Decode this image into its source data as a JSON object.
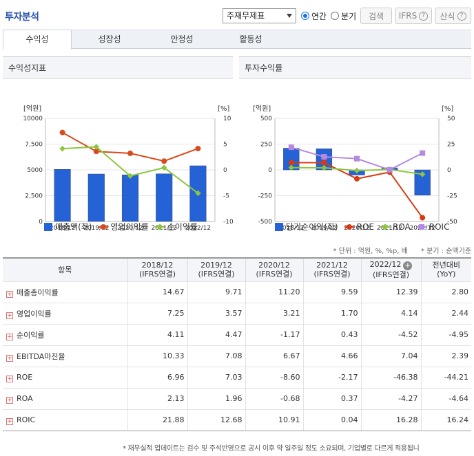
{
  "header": {
    "title": "투자분석",
    "select_value": "주재무제표",
    "radio_annual": "연간",
    "radio_quarter": "분기",
    "search_btn": "검색",
    "ifrs_btn": "IFRS",
    "formula_btn": "산식",
    "help_glyph": "?"
  },
  "tabs": [
    {
      "label": "수익성"
    },
    {
      "label": "성장성"
    },
    {
      "label": "안정성"
    },
    {
      "label": "활동성"
    }
  ],
  "chart_data": [
    {
      "type": "bar",
      "title": "수익성지표",
      "left_axis_label": "[억원]",
      "right_axis_label": "[%]",
      "categories": [
        "2018/12",
        "2019/12",
        "2020/12",
        "2021/12",
        "2022/12"
      ],
      "left_ticks": [
        "10000",
        "7,500",
        "5000",
        "2,500",
        "0"
      ],
      "right_ticks": [
        "10",
        "5",
        "0",
        "-5",
        "-10"
      ],
      "left_ylim": [
        0,
        10000
      ],
      "right_ylim": [
        -10,
        10
      ],
      "series": [
        {
          "name": "매출액(좌)",
          "kind": "bar",
          "axis": "left",
          "color": "#2462d6",
          "values": [
            5050,
            4600,
            4520,
            4620,
            5400
          ]
        },
        {
          "name": "영업이익률",
          "kind": "line",
          "axis": "right",
          "color": "#d94a1e",
          "marker": "circle",
          "values": [
            7.25,
            3.57,
            3.21,
            1.7,
            4.14
          ]
        },
        {
          "name": "순이익률",
          "kind": "line",
          "axis": "right",
          "color": "#8cc63f",
          "marker": "diamond",
          "values": [
            4.11,
            4.47,
            -1.17,
            0.43,
            -4.52
          ]
        }
      ],
      "legend_position": "bottom"
    },
    {
      "type": "bar",
      "title": "투자수익률",
      "left_axis_label": "[억원]",
      "right_axis_label": "[%]",
      "categories": [
        "2018/12",
        "2019/12",
        "2020/12",
        "2021/12",
        "2022/12"
      ],
      "left_ticks": [
        "500",
        "250",
        "0",
        "-250",
        "-500"
      ],
      "right_ticks": [
        "50",
        "25",
        "0",
        "-25",
        "-50"
      ],
      "left_ylim": [
        -500,
        500
      ],
      "right_ylim": [
        -50,
        50
      ],
      "series": [
        {
          "name": "당기순이익(좌)",
          "kind": "bar",
          "axis": "left",
          "color": "#2462d6",
          "values": [
            210,
            205,
            -50,
            20,
            -245
          ]
        },
        {
          "name": "ROE",
          "kind": "line",
          "axis": "right",
          "color": "#d93a12",
          "marker": "circle",
          "values": [
            6.96,
            7.03,
            -8.6,
            -2.17,
            -46.38
          ]
        },
        {
          "name": "ROA",
          "kind": "line",
          "axis": "right",
          "color": "#8cc63f",
          "marker": "diamond",
          "values": [
            2.13,
            1.96,
            -0.68,
            0.37,
            -4.27
          ]
        },
        {
          "name": "ROIC",
          "kind": "line",
          "axis": "right",
          "color": "#b48ae0",
          "marker": "square",
          "values": [
            21.88,
            12.68,
            10.91,
            0.04,
            16.28
          ]
        }
      ],
      "legend_position": "bottom"
    }
  ],
  "unit_note": "* 단위 : 억원, %, %p, 배      * 분기 : 순액기준",
  "table": {
    "headers": [
      {
        "l1": "항목",
        "l2": ""
      },
      {
        "l1": "2018/12",
        "l2": "(IFRS연결)"
      },
      {
        "l1": "2019/12",
        "l2": "(IFRS연결)"
      },
      {
        "l1": "2020/12",
        "l2": "(IFRS연결)"
      },
      {
        "l1": "2021/12",
        "l2": "(IFRS연결)"
      },
      {
        "l1": "2022/12",
        "l2": "(IFRS연결)"
      },
      {
        "l1": "전년대비",
        "l2": "(YoY)"
      }
    ],
    "rows": [
      {
        "label": "매출총이익률",
        "values": [
          "14.67",
          "9.71",
          "11.20",
          "9.59",
          "12.39",
          "2.80"
        ]
      },
      {
        "label": "영업이익률",
        "values": [
          "7.25",
          "3.57",
          "3.21",
          "1.70",
          "4.14",
          "2.44"
        ]
      },
      {
        "label": "순이익률",
        "values": [
          "4.11",
          "4.47",
          "-1.17",
          "0.43",
          "-4.52",
          "-4.95"
        ]
      },
      {
        "label": "EBITDA마진율",
        "values": [
          "10.33",
          "7.08",
          "6.67",
          "4.66",
          "7.04",
          "2.39"
        ]
      },
      {
        "label": "ROE",
        "values": [
          "6.96",
          "7.03",
          "-8.60",
          "-2.17",
          "-46.38",
          "-44.21"
        ]
      },
      {
        "label": "ROA",
        "values": [
          "2.13",
          "1.96",
          "-0.68",
          "0.37",
          "-4.27",
          "-4.64"
        ]
      },
      {
        "label": "ROIC",
        "values": [
          "21.88",
          "12.68",
          "10.91",
          "0.04",
          "16.28",
          "16.24"
        ]
      }
    ]
  },
  "footnote": "* 재무실적 업데이트는 검수 및 주석반영으로 공시 이후 약 일주일 정도 소요되며, 기업별로 다르게 적용됩니"
}
